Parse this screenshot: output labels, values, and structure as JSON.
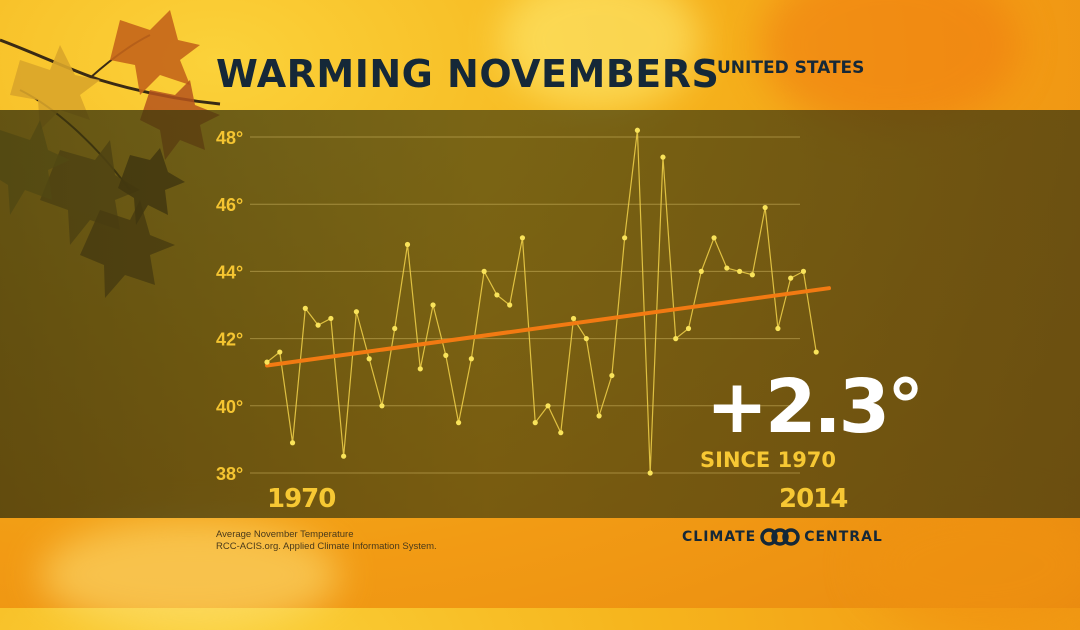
{
  "header": {
    "title": "WARMING NOVEMBERS",
    "region": "UNITED STATES"
  },
  "stat": {
    "value": "+2.3°",
    "caption": "SINCE 1970"
  },
  "footer": {
    "source_line1": "Average November Temperature",
    "source_line2": "RCC-ACIS.org. Applied Climate Information System.",
    "brand_left": "CLIMATE",
    "brand_right": "CENTRAL"
  },
  "colors": {
    "series": "#f2d24a",
    "points": "#f9e35a",
    "trend": "#f27a12",
    "tick_text": "#f5c531",
    "title": "#152838"
  },
  "icons": {
    "brand_logo": "climate-central-logo-icon"
  },
  "chart_data": {
    "type": "line",
    "title": "WARMING NOVEMBERS",
    "subtitle": "UNITED STATES",
    "xlabel": "",
    "ylabel": "",
    "x_start_label": "1970",
    "x_end_label": "2014",
    "xlim": [
      1970,
      2014
    ],
    "ylim": [
      38,
      48
    ],
    "y_ticks": [
      38,
      40,
      42,
      44,
      46,
      48
    ],
    "y_tick_labels": [
      "38°",
      "40°",
      "42°",
      "44°",
      "46°",
      "48°"
    ],
    "grid": true,
    "series": [
      {
        "x": [
          1970,
          1971,
          1972,
          1973,
          1974,
          1975,
          1976,
          1977,
          1978,
          1979,
          1980,
          1981,
          1982,
          1983,
          1984,
          1985,
          1986,
          1987,
          1988,
          1989,
          1990,
          1991,
          1992,
          1993,
          1994,
          1995,
          1996,
          1997,
          1998,
          1999,
          2000,
          2001,
          2002,
          2003,
          2004,
          2005,
          2006,
          2007,
          2008,
          2009,
          2010,
          2011,
          2012,
          2013,
          2014
        ],
        "values": [
          41.3,
          41.6,
          38.9,
          42.9,
          42.4,
          42.6,
          38.5,
          42.8,
          41.4,
          40.0,
          42.3,
          44.8,
          41.1,
          43.0,
          41.5,
          39.5,
          41.4,
          44.0,
          43.3,
          43.0,
          45.0,
          39.5,
          40.0,
          39.2,
          42.6,
          42.0,
          39.7,
          40.9,
          45.0,
          48.2,
          38.0,
          47.4,
          42.0,
          42.3,
          44.0,
          45.0,
          44.1,
          44.0,
          43.9,
          45.9,
          42.3,
          43.8,
          44.0,
          41.6,
          null
        ],
        "trend": {
          "start": [
            1970,
            41.2
          ],
          "end": [
            2014,
            43.5
          ],
          "change": "+2.3°"
        }
      }
    ]
  }
}
